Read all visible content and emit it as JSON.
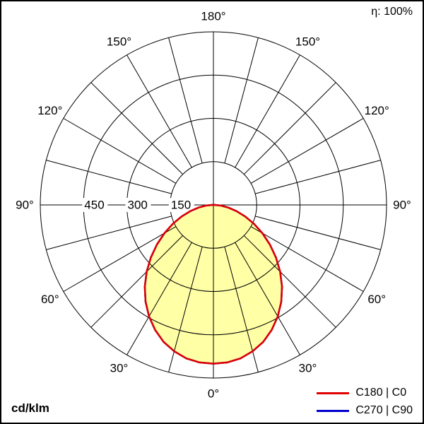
{
  "chart_data": {
    "type": "polar",
    "units": "cd/klm",
    "efficiency": "η: 100%",
    "angle_labels": [
      "0°",
      "30°",
      "60°",
      "90°",
      "120°",
      "150°",
      "180°"
    ],
    "grid_step_deg": 15,
    "radial_ticks": [
      150,
      300,
      450
    ],
    "radial_max": 600,
    "gamma_deg": [
      0,
      5,
      10,
      15,
      20,
      25,
      30,
      35,
      40,
      45,
      50,
      55,
      60,
      65,
      70,
      75,
      80,
      85,
      90
    ],
    "series": [
      {
        "name": "C270 | C90",
        "color": "#0000cd",
        "values": [
          550,
          548,
          540,
          525,
          505,
          478,
          446,
          410,
          370,
          327,
          283,
          239,
          196,
          155,
          117,
          83,
          53,
          27,
          5
        ]
      },
      {
        "name": "C180 | C0",
        "color": "#e00000",
        "fill": "#ffffa6",
        "values": [
          550,
          548,
          540,
          525,
          505,
          478,
          446,
          410,
          370,
          327,
          283,
          239,
          196,
          155,
          117,
          83,
          53,
          27,
          5
        ]
      }
    ],
    "legend": [
      {
        "label": "C180 | C0",
        "color": "#e00000"
      },
      {
        "label": "C270 | C90",
        "color": "#0000cd"
      }
    ]
  }
}
